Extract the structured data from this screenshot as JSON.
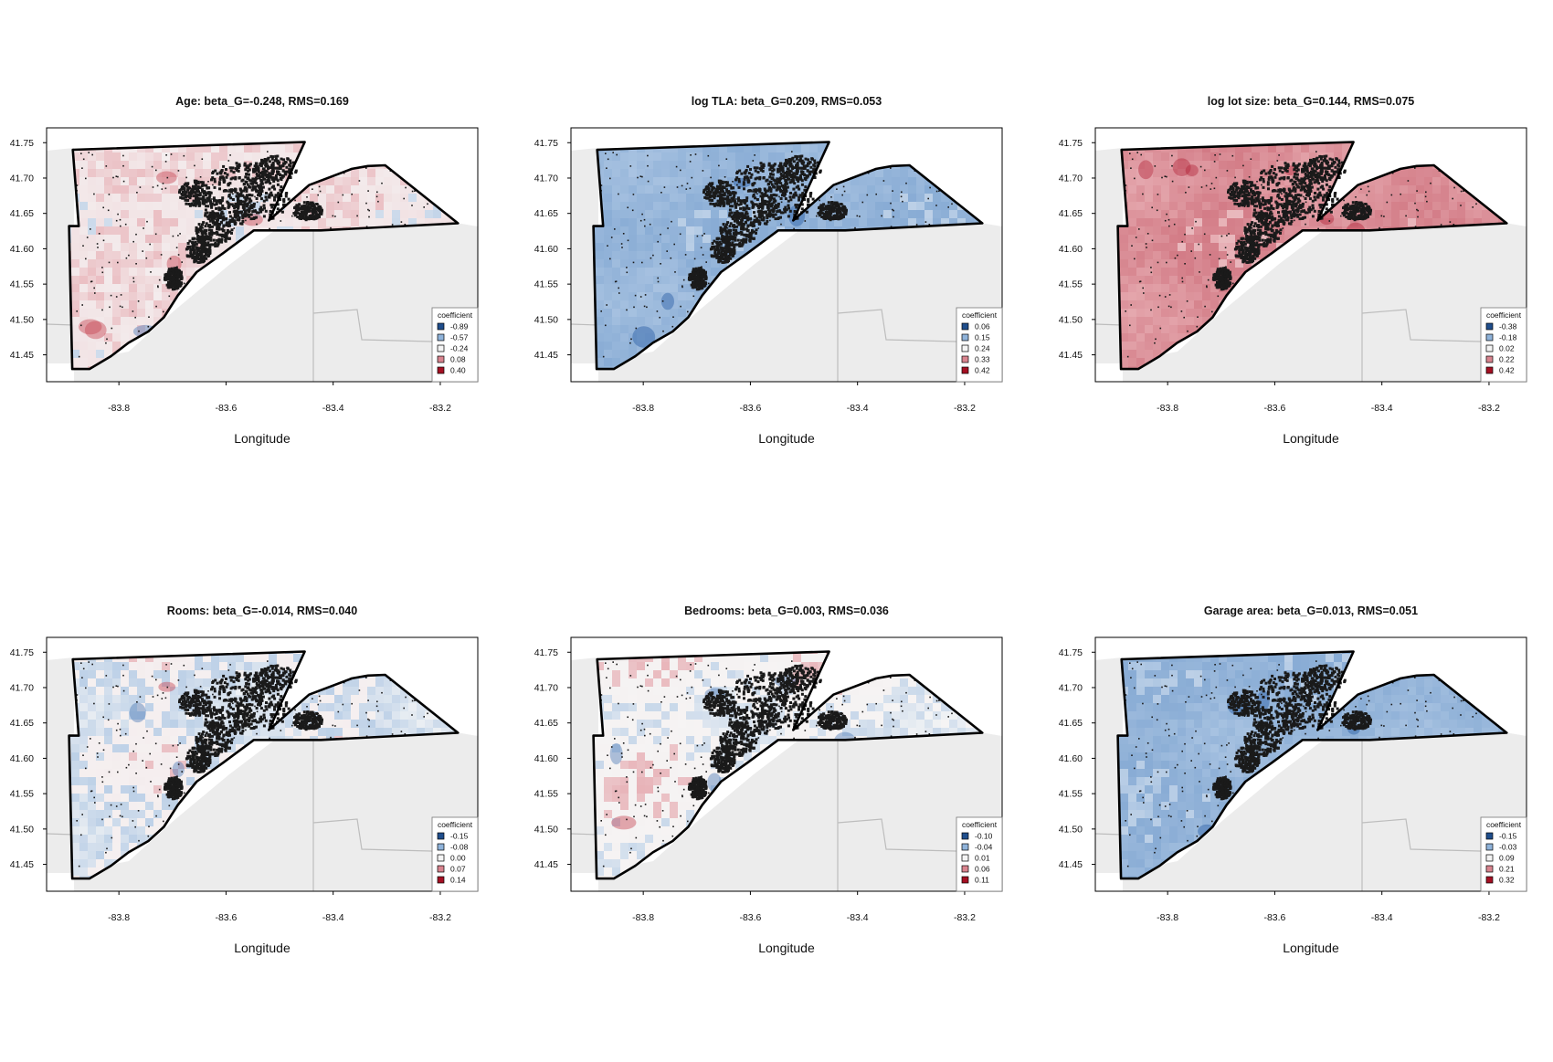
{
  "colors": {
    "legend_swatches": [
      "#1f4e8c",
      "#8fb3da",
      "#f4f4f4",
      "#d9848f",
      "#a50f22"
    ],
    "background_land": "#ececec",
    "boundary": "#000000",
    "points": "#1a1a1a"
  },
  "x_axis": {
    "label": "Longitude",
    "ticks": [
      "-83.8",
      "-83.6",
      "-83.4",
      "-83.2"
    ]
  },
  "y_axis": {
    "ticks": [
      "41.75",
      "41.70",
      "41.65",
      "41.60",
      "41.55",
      "41.50",
      "41.45"
    ]
  },
  "legend_title": "coefficient",
  "panels": [
    {
      "title": "Age: beta_G=-0.248, RMS=0.169",
      "legend_values": [
        "-0.89",
        "-0.57",
        "-0.24",
        "0.08",
        "0.40"
      ],
      "tone": "red-mix"
    },
    {
      "title": "log TLA: beta_G=0.209, RMS=0.053",
      "legend_values": [
        "0.06",
        "0.15",
        "0.24",
        "0.33",
        "0.42"
      ],
      "tone": "blue"
    },
    {
      "title": "log lot size: beta_G=0.144, RMS=0.075",
      "legend_values": [
        "-0.38",
        "-0.18",
        "0.02",
        "0.22",
        "0.42"
      ],
      "tone": "red"
    },
    {
      "title": "Rooms: beta_G=-0.014, RMS=0.040",
      "legend_values": [
        "-0.15",
        "-0.08",
        "0.00",
        "0.07",
        "0.14"
      ],
      "tone": "blue-mix"
    },
    {
      "title": "Bedrooms: beta_G=0.003, RMS=0.036",
      "legend_values": [
        "-0.10",
        "-0.04",
        "0.01",
        "0.06",
        "0.11"
      ],
      "tone": "neutral-mix"
    },
    {
      "title": "Garage area: beta_G=0.013, RMS=0.051",
      "legend_values": [
        "-0.15",
        "-0.03",
        "0.09",
        "0.21",
        "0.32"
      ],
      "tone": "blue"
    }
  ]
}
